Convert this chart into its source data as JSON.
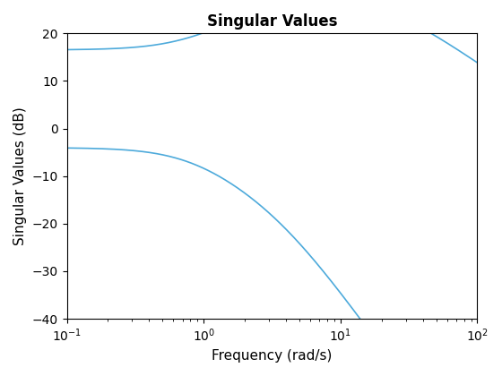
{
  "title": "Singular Values",
  "xlabel": "Frequency (rad/s)",
  "ylabel": "Singular Values (dB)",
  "line_color": "#4DAADB",
  "xlim_log": [
    -1,
    2
  ],
  "ylim": [
    -40,
    20
  ],
  "yticks": [
    -40,
    -30,
    -20,
    -10,
    0,
    10,
    20
  ],
  "line_width": 1.2,
  "title_fontsize": 12,
  "label_fontsize": 11,
  "tick_fontsize": 10,
  "sv1_A": 6.7,
  "sv1_wz": 0.8,
  "sv1_wp1": 3.0,
  "sv1_wp2": 20.0,
  "sv2_B": 0.63,
  "sv2_wp1": 0.8,
  "sv2_wp2": 4.0
}
